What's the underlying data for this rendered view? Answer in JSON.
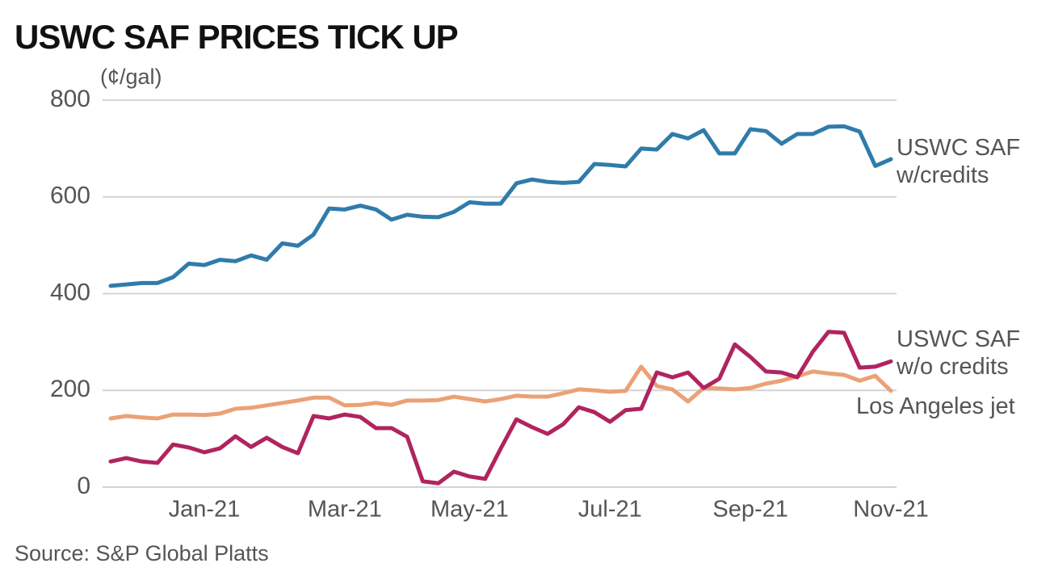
{
  "chart_data": {
    "type": "line",
    "title": "USWC SAF PRICES TICK UP",
    "y_label": "(¢/gal)",
    "source": "Source: S&P Global Platts",
    "categories": [
      null,
      null,
      null,
      null,
      null,
      null,
      "Jan-21",
      null,
      null,
      null,
      null,
      null,
      null,
      null,
      null,
      "Mar-21",
      null,
      null,
      null,
      null,
      null,
      null,
      null,
      "May-21",
      null,
      null,
      null,
      null,
      null,
      null,
      null,
      null,
      "Jul-21",
      null,
      null,
      null,
      null,
      null,
      null,
      null,
      null,
      "Sep-21",
      null,
      null,
      null,
      null,
      null,
      null,
      null,
      null,
      "Nov-21"
    ],
    "ylim": [
      0,
      800
    ],
    "yticks": [
      0,
      200,
      400,
      600,
      800
    ],
    "grid": true,
    "series": [
      {
        "name": "USWC SAF w/credits",
        "color": "#2f7cab",
        "values": [
          416,
          419,
          422,
          422,
          434,
          462,
          459,
          470,
          467,
          479,
          470,
          504,
          499,
          522,
          576,
          574,
          582,
          574,
          553,
          563,
          559,
          558,
          569,
          589,
          586,
          586,
          628,
          636,
          631,
          629,
          631,
          668,
          666,
          663,
          700,
          698,
          730,
          721,
          738,
          690,
          690,
          740,
          736,
          710,
          730,
          730,
          745,
          746,
          735,
          664,
          678
        ]
      },
      {
        "name": "USWC SAF w/o credits",
        "color": "#b0245f",
        "values": [
          53,
          60,
          53,
          50,
          88,
          82,
          72,
          80,
          105,
          83,
          102,
          83,
          70,
          147,
          142,
          150,
          145,
          122,
          122,
          104,
          12,
          8,
          32,
          22,
          17,
          80,
          140,
          124,
          110,
          130,
          165,
          155,
          135,
          159,
          162,
          237,
          227,
          237,
          205,
          224,
          295,
          269,
          239,
          237,
          227,
          280,
          321,
          319,
          247,
          249,
          260
        ]
      },
      {
        "name": "Los Angeles jet",
        "color": "#eba176",
        "values": [
          142,
          147,
          144,
          142,
          150,
          150,
          149,
          152,
          162,
          164,
          169,
          174,
          179,
          185,
          185,
          169,
          170,
          174,
          170,
          179,
          179,
          180,
          187,
          182,
          177,
          182,
          189,
          187,
          187,
          194,
          202,
          200,
          197,
          199,
          249,
          209,
          202,
          177,
          205,
          204,
          202,
          205,
          214,
          220,
          229,
          239,
          235,
          232,
          220,
          230,
          199
        ]
      }
    ]
  }
}
